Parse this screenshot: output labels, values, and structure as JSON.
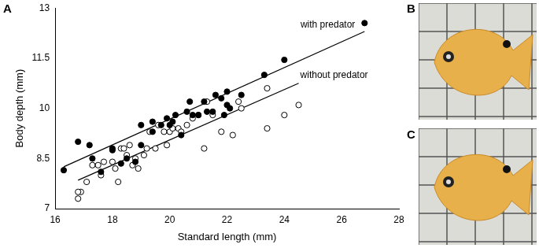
{
  "panel_labels": [
    "A",
    "B",
    "C"
  ],
  "chart_data": {
    "type": "scatter",
    "x_label": "Standard length (mm)",
    "y_label": "Body depth (mm)",
    "xlim": [
      16,
      28
    ],
    "xticks": [
      16,
      18,
      20,
      22,
      24,
      26,
      28
    ],
    "ylim": [
      7,
      13
    ],
    "yticks": [
      7,
      8.5,
      10,
      11.5,
      13
    ],
    "grid": false,
    "series": [
      {
        "name": "with predator",
        "color": "#000000",
        "marker": "filled_circle",
        "values": [
          [
            16.3,
            8.15
          ],
          [
            16.8,
            9.0
          ],
          [
            17.2,
            8.9
          ],
          [
            17.3,
            8.5
          ],
          [
            17.6,
            8.1
          ],
          [
            18.0,
            8.8
          ],
          [
            18.0,
            8.75
          ],
          [
            18.3,
            8.35
          ],
          [
            18.5,
            8.5
          ],
          [
            18.8,
            8.4
          ],
          [
            19.0,
            9.5
          ],
          [
            19.0,
            8.9
          ],
          [
            19.4,
            9.6
          ],
          [
            19.4,
            9.3
          ],
          [
            19.7,
            9.5
          ],
          [
            19.9,
            9.7
          ],
          [
            20.0,
            9.5
          ],
          [
            20.1,
            9.6
          ],
          [
            20.2,
            9.8
          ],
          [
            20.4,
            9.2
          ],
          [
            20.6,
            9.9
          ],
          [
            20.7,
            10.2
          ],
          [
            20.8,
            9.8
          ],
          [
            21.0,
            9.8
          ],
          [
            21.2,
            10.2
          ],
          [
            21.3,
            9.9
          ],
          [
            21.5,
            9.9
          ],
          [
            21.6,
            10.4
          ],
          [
            21.8,
            10.3
          ],
          [
            21.9,
            9.8
          ],
          [
            22.0,
            10.5
          ],
          [
            22.0,
            10.1
          ],
          [
            22.1,
            10.0
          ],
          [
            22.5,
            10.4
          ],
          [
            23.3,
            11.0
          ],
          [
            24.0,
            11.45
          ],
          [
            26.8,
            12.55
          ]
        ],
        "fit": [
          [
            16.3,
            8.25
          ],
          [
            26.8,
            12.3
          ]
        ]
      },
      {
        "name": "without predator",
        "color": "#000000",
        "marker": "open_circle",
        "values": [
          [
            16.8,
            7.3
          ],
          [
            16.9,
            7.5
          ],
          [
            16.8,
            7.5
          ],
          [
            17.1,
            7.8
          ],
          [
            17.3,
            8.3
          ],
          [
            17.5,
            8.3
          ],
          [
            17.6,
            8.0
          ],
          [
            17.7,
            8.4
          ],
          [
            18.0,
            8.4
          ],
          [
            18.1,
            8.2
          ],
          [
            18.2,
            7.8
          ],
          [
            18.3,
            8.8
          ],
          [
            18.4,
            8.8
          ],
          [
            18.5,
            8.6
          ],
          [
            18.6,
            8.9
          ],
          [
            18.7,
            8.3
          ],
          [
            18.8,
            8.5
          ],
          [
            18.9,
            8.2
          ],
          [
            19.1,
            8.6
          ],
          [
            19.2,
            8.8
          ],
          [
            19.3,
            9.3
          ],
          [
            19.5,
            8.8
          ],
          [
            19.6,
            9.5
          ],
          [
            19.8,
            9.3
          ],
          [
            19.9,
            8.9
          ],
          [
            20.0,
            9.3
          ],
          [
            20.1,
            9.4
          ],
          [
            20.3,
            9.4
          ],
          [
            20.4,
            9.3
          ],
          [
            20.6,
            9.5
          ],
          [
            20.8,
            9.7
          ],
          [
            21.0,
            9.8
          ],
          [
            21.2,
            8.8
          ],
          [
            21.3,
            10.2
          ],
          [
            21.5,
            9.8
          ],
          [
            21.8,
            9.3
          ],
          [
            22.2,
            9.2
          ],
          [
            22.4,
            10.2
          ],
          [
            22.5,
            10.0
          ],
          [
            23.4,
            10.6
          ],
          [
            23.4,
            9.4
          ],
          [
            24.0,
            9.8
          ],
          [
            24.5,
            10.1
          ]
        ],
        "fit": [
          [
            16.8,
            7.85
          ],
          [
            24.5,
            10.75
          ]
        ]
      }
    ]
  }
}
